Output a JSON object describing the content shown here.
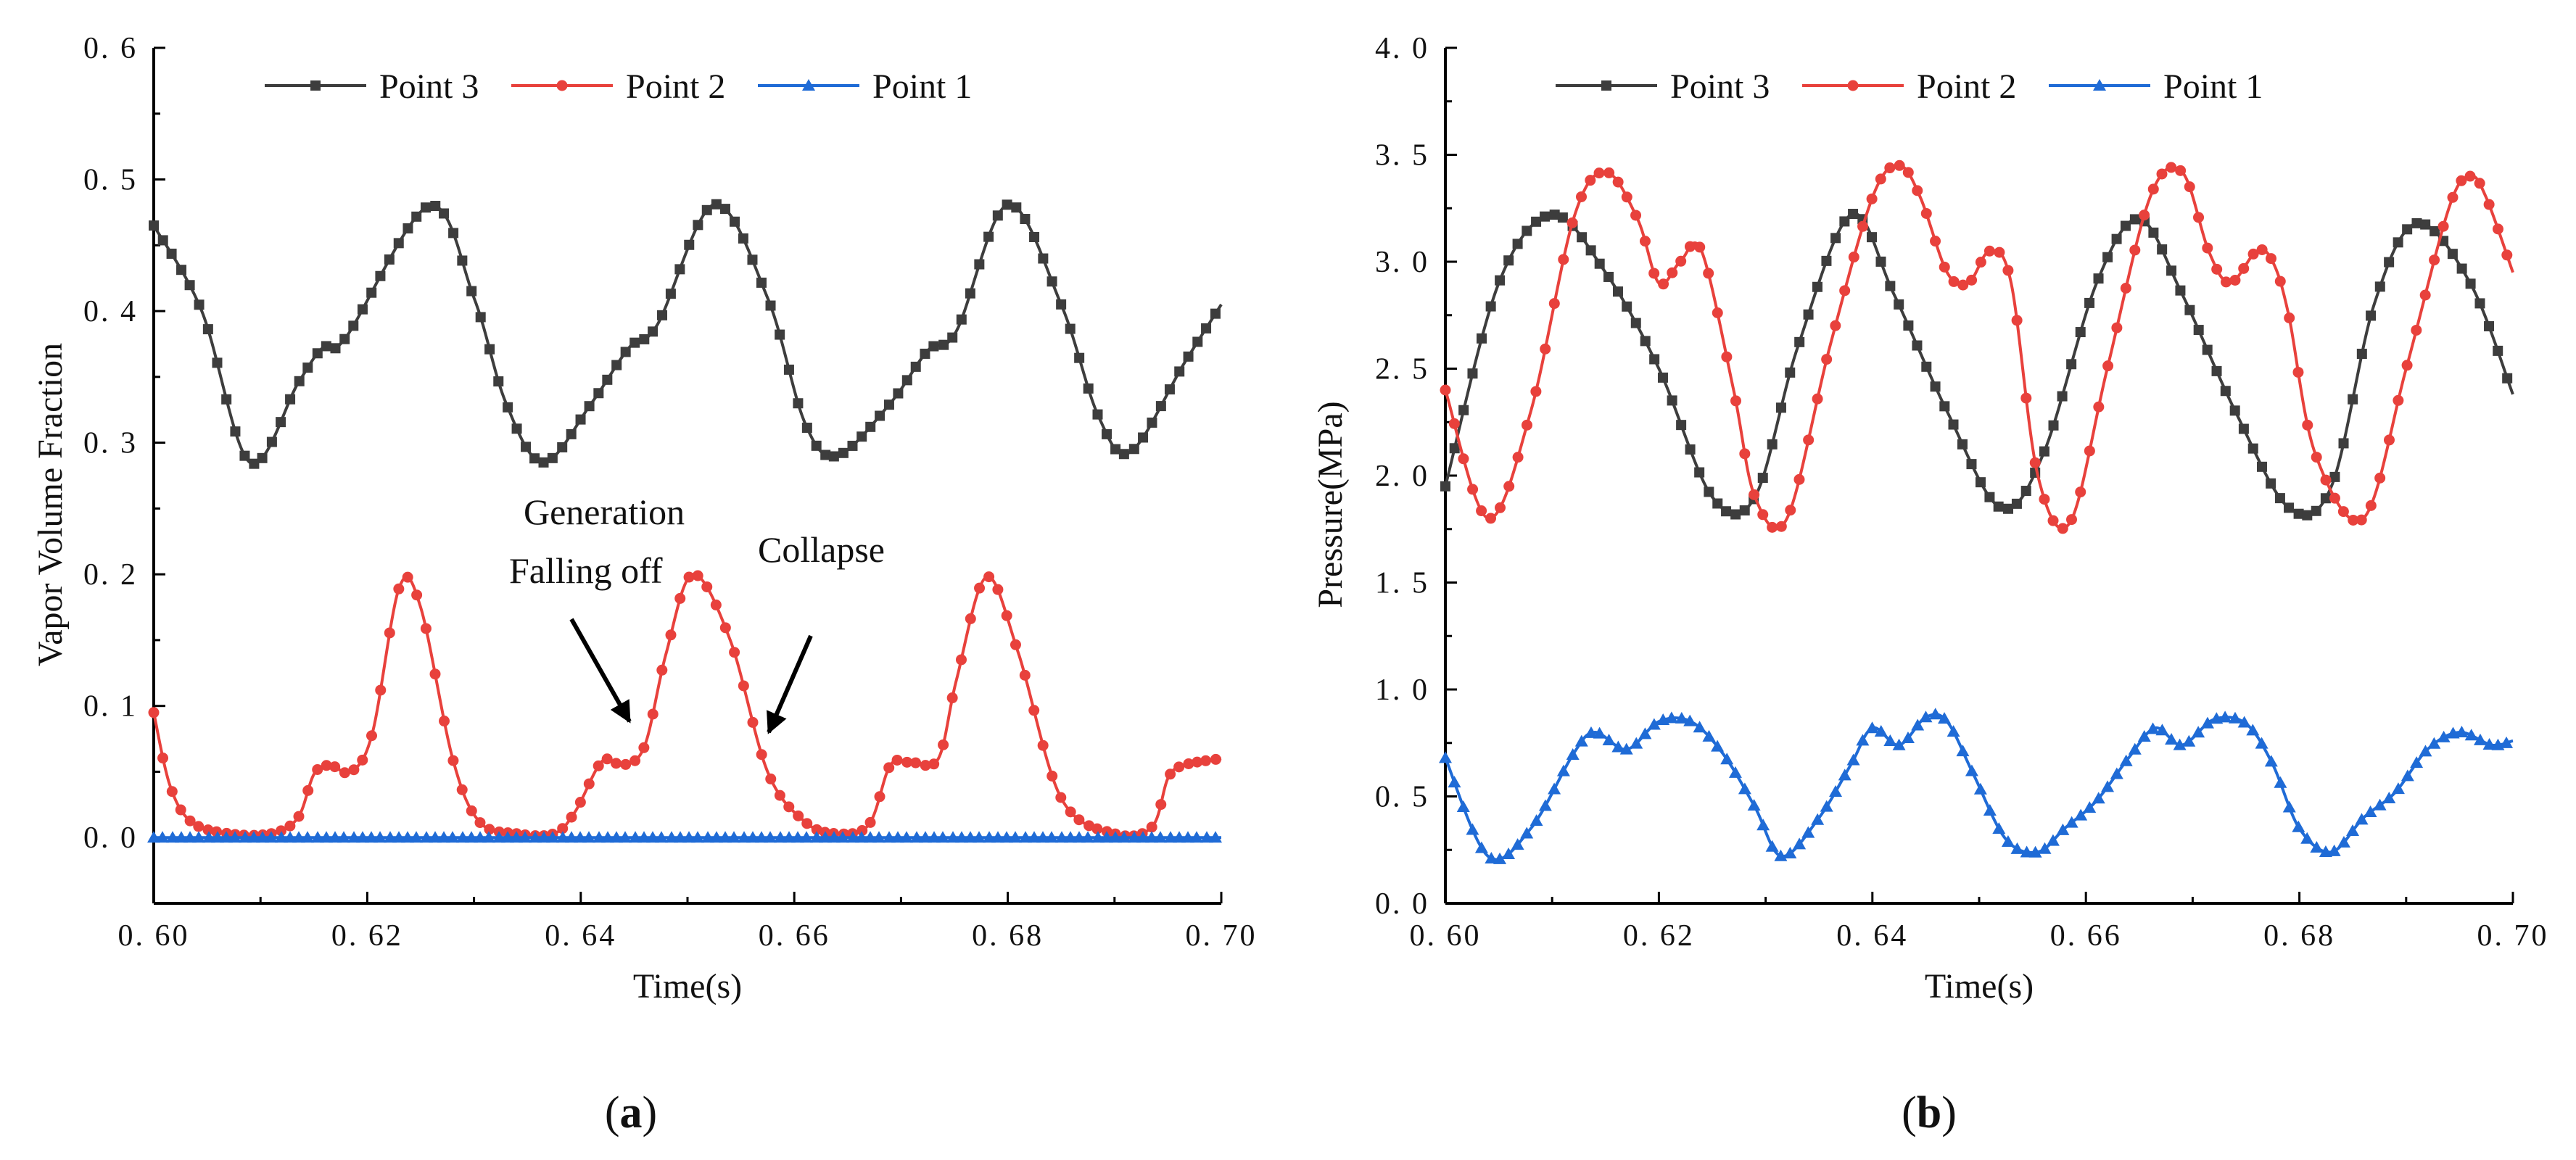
{
  "figure": {
    "panel_labels": [
      "(a)",
      "(b)"
    ]
  },
  "chart_data": [
    {
      "type": "line",
      "panel": "(a)",
      "title": "",
      "xlabel": "Time(s)",
      "ylabel": "Vapor Volume Fraction",
      "xlim": [
        0.6,
        0.7
      ],
      "ylim": [
        -0.05,
        0.6
      ],
      "xticks": [
        0.6,
        0.62,
        0.64,
        0.66,
        0.68,
        0.7
      ],
      "xtick_labels": [
        "0. 60",
        "0. 62",
        "0. 64",
        "0. 66",
        "0. 68",
        "0. 70"
      ],
      "yticks": [
        0.0,
        0.1,
        0.2,
        0.3,
        0.4,
        0.5,
        0.6
      ],
      "ytick_labels": [
        "0. 0",
        "0. 1",
        "0. 2",
        "0. 3",
        "0. 4",
        "0. 5",
        "0. 6"
      ],
      "legend": {
        "placement": "top",
        "entries": [
          "Point 3",
          "Point 2",
          "Point 1"
        ]
      },
      "annotations": [
        {
          "text": "Generation\nFalling off",
          "target_x": 0.6456,
          "target_y": 0.09
        },
        {
          "text": "Collapse",
          "target_x": 0.6572,
          "target_y": 0.08
        }
      ],
      "series": [
        {
          "name": "Point 3",
          "color": "#3d3d3d",
          "marker": "square",
          "x": [
            0.6,
            0.6045,
            0.609,
            0.6135,
            0.6158,
            0.618,
            0.6258,
            0.63,
            0.633,
            0.6365,
            0.641,
            0.6445,
            0.6472,
            0.6525,
            0.6575,
            0.661,
            0.664,
            0.669,
            0.6725,
            0.6752,
            0.68,
            0.685,
            0.6885,
            0.6915,
            0.6965,
            0.7
          ],
          "y": [
            0.465,
            0.4,
            0.285,
            0.345,
            0.372,
            0.38,
            0.48,
            0.41,
            0.33,
            0.285,
            0.33,
            0.372,
            0.39,
            0.481,
            0.41,
            0.315,
            0.29,
            0.33,
            0.37,
            0.385,
            0.481,
            0.405,
            0.32,
            0.293,
            0.36,
            0.405
          ]
        },
        {
          "name": "Point 2",
          "color": "#e8413c",
          "marker": "circle",
          "x": [
            0.6,
            0.6015,
            0.6035,
            0.607,
            0.611,
            0.6135,
            0.615,
            0.6165,
            0.6185,
            0.6205,
            0.623,
            0.625,
            0.628,
            0.6305,
            0.634,
            0.6375,
            0.6395,
            0.642,
            0.644,
            0.646,
            0.648,
            0.6505,
            0.654,
            0.6575,
            0.661,
            0.664,
            0.667,
            0.669,
            0.671,
            0.6735,
            0.6752,
            0.678,
            0.681,
            0.685,
            0.69,
            0.6935,
            0.695,
            0.6965,
            0.7
          ],
          "y": [
            0.095,
            0.04,
            0.012,
            0.003,
            0.003,
            0.015,
            0.048,
            0.055,
            0.05,
            0.08,
            0.19,
            0.175,
            0.06,
            0.012,
            0.003,
            0.003,
            0.02,
            0.058,
            0.055,
            0.07,
            0.14,
            0.2,
            0.15,
            0.05,
            0.012,
            0.003,
            0.01,
            0.055,
            0.057,
            0.06,
            0.12,
            0.198,
            0.14,
            0.03,
            0.003,
            0.008,
            0.045,
            0.055,
            0.06
          ]
        },
        {
          "name": "Point 1",
          "color": "#1f6bd6",
          "marker": "triangle",
          "x": [
            0.6,
            0.7
          ],
          "y": [
            0.0,
            0.0
          ]
        }
      ]
    },
    {
      "type": "line",
      "panel": "(b)",
      "title": "",
      "xlabel": "Time(s)",
      "ylabel": "Pressure(MPa)",
      "xlim": [
        0.6,
        0.7
      ],
      "ylim": [
        0.0,
        4.0
      ],
      "xticks": [
        0.6,
        0.62,
        0.64,
        0.66,
        0.68,
        0.7
      ],
      "xtick_labels": [
        "0. 60",
        "0. 62",
        "0. 64",
        "0. 66",
        "0. 68",
        "0. 70"
      ],
      "yticks": [
        0.0,
        0.5,
        1.0,
        1.5,
        2.0,
        2.5,
        3.0,
        3.5,
        4.0
      ],
      "ytick_labels": [
        "0. 0",
        "0. 5",
        "1. 0",
        "1. 5",
        "2. 0",
        "2. 5",
        "3. 0",
        "3. 5",
        "4. 0"
      ],
      "legend": {
        "placement": "top",
        "entries": [
          "Point 3",
          "Point 2",
          "Point 1"
        ]
      },
      "series": [
        {
          "name": "Point 3",
          "color": "#3d3d3d",
          "marker": "square",
          "x": [
            0.6,
            0.605,
            0.61,
            0.615,
            0.62,
            0.625,
            0.629,
            0.633,
            0.638,
            0.642,
            0.647,
            0.652,
            0.656,
            0.661,
            0.665,
            0.669,
            0.674,
            0.679,
            0.683,
            0.687,
            0.691,
            0.696,
            0.7
          ],
          "y": [
            1.95,
            2.9,
            3.22,
            2.95,
            2.5,
            1.9,
            1.9,
            2.6,
            3.22,
            2.85,
            2.3,
            1.85,
            2.1,
            2.9,
            3.2,
            2.85,
            2.3,
            1.85,
            1.95,
            2.8,
            3.18,
            2.9,
            2.38
          ]
        },
        {
          "name": "Point 2",
          "color": "#e8413c",
          "marker": "circle",
          "x": [
            0.6,
            0.604,
            0.608,
            0.612,
            0.615,
            0.618,
            0.62,
            0.622,
            0.624,
            0.627,
            0.629,
            0.632,
            0.636,
            0.64,
            0.6425,
            0.6445,
            0.647,
            0.649,
            0.651,
            0.653,
            0.6555,
            0.6585,
            0.662,
            0.666,
            0.669,
            0.6715,
            0.6735,
            0.676,
            0.6775,
            0.679,
            0.6815,
            0.686,
            0.69,
            0.694,
            0.696,
            0.6975,
            0.7
          ],
          "y": [
            2.4,
            1.8,
            2.3,
            3.2,
            3.42,
            3.2,
            2.9,
            3.0,
            3.05,
            2.4,
            1.9,
            1.8,
            2.6,
            3.3,
            3.45,
            3.3,
            2.95,
            2.9,
            3.05,
            2.9,
            2.0,
            1.78,
            2.5,
            3.3,
            3.42,
            3.05,
            2.9,
            3.05,
            3.0,
            2.75,
            2.1,
            1.8,
            2.5,
            3.25,
            3.4,
            3.3,
            2.95
          ]
        },
        {
          "name": "Point 1",
          "color": "#1f6bd6",
          "marker": "triangle",
          "x": [
            0.6,
            0.604,
            0.608,
            0.612,
            0.614,
            0.617,
            0.62,
            0.623,
            0.626,
            0.629,
            0.6315,
            0.635,
            0.638,
            0.64,
            0.6425,
            0.645,
            0.647,
            0.6495,
            0.6525,
            0.6555,
            0.658,
            0.661,
            0.664,
            0.6665,
            0.669,
            0.672,
            0.675,
            0.6775,
            0.68,
            0.683,
            0.686,
            0.689,
            0.692,
            0.695,
            0.698,
            0.7
          ],
          "y": [
            0.68,
            0.22,
            0.35,
            0.7,
            0.8,
            0.72,
            0.85,
            0.85,
            0.7,
            0.45,
            0.22,
            0.4,
            0.65,
            0.82,
            0.74,
            0.87,
            0.85,
            0.6,
            0.3,
            0.24,
            0.35,
            0.48,
            0.68,
            0.82,
            0.74,
            0.86,
            0.84,
            0.65,
            0.35,
            0.24,
            0.4,
            0.52,
            0.72,
            0.8,
            0.74,
            0.76
          ]
        }
      ]
    }
  ]
}
